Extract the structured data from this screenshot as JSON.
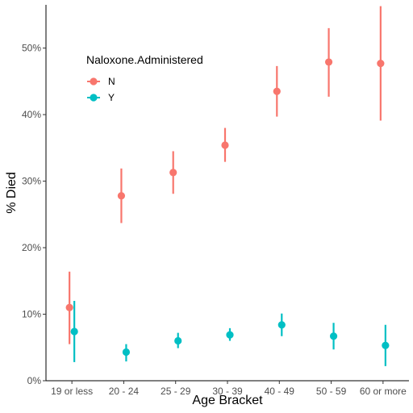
{
  "chart_data": {
    "type": "scatter",
    "style": "point-range",
    "xlabel": "Age Bracket",
    "ylabel": "% Died",
    "categories": [
      "19 or less",
      "20 - 24",
      "25 - 29",
      "30 - 39",
      "40 - 49",
      "50 - 59",
      "60 or more"
    ],
    "ylim": [
      0,
      56.5
    ],
    "yticks": [
      0,
      10,
      20,
      30,
      40,
      50
    ],
    "ytick_labels": [
      "0%",
      "10%",
      "20%",
      "30%",
      "40%",
      "50%"
    ],
    "grid": false,
    "legend": {
      "title": "Naloxone.Administered",
      "position": "top-left"
    },
    "series": [
      {
        "name": "N",
        "color": "#F8766D",
        "values": [
          11.0,
          27.8,
          31.3,
          35.4,
          43.5,
          47.9,
          47.7
        ],
        "lower": [
          5.5,
          23.7,
          28.1,
          32.9,
          39.7,
          42.7,
          39.1
        ],
        "upper": [
          16.4,
          31.9,
          34.5,
          38.0,
          47.3,
          53.0,
          56.3
        ]
      },
      {
        "name": "Y",
        "color": "#00BFC4",
        "values": [
          7.4,
          4.3,
          6.0,
          6.9,
          8.4,
          6.7,
          5.3
        ],
        "lower": [
          2.8,
          2.9,
          4.9,
          6.0,
          6.7,
          4.7,
          2.2
        ],
        "upper": [
          12.0,
          5.5,
          7.2,
          7.9,
          10.1,
          8.7,
          8.4
        ]
      }
    ]
  }
}
